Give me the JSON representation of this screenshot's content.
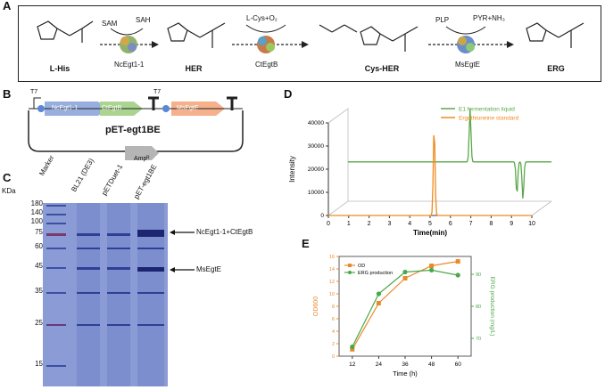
{
  "panels": {
    "a": "A",
    "b": "B",
    "c": "C",
    "d": "D",
    "e": "E"
  },
  "pathway": {
    "molecules": [
      "L-His",
      "HER",
      "Cys-HER",
      "ERG"
    ],
    "enzymes": [
      "NcEgt1-1",
      "CtEgtB",
      "MsEgtE"
    ],
    "cofactors": {
      "sam": "SAM",
      "sah": "SAH",
      "cys": "L-Cys+O₂",
      "plp": "PLP",
      "pyr": "PYR+NH₃"
    }
  },
  "plasmid": {
    "name": "pET-egt1BE",
    "promoter1": "T7",
    "promoter2": "T7",
    "genes": [
      "NcEgt1-1",
      "CtEgtB",
      "MsEgtE"
    ],
    "marker": "Ampᴿ"
  },
  "gel": {
    "kda_label": "KDa",
    "markers": [
      "180",
      "140",
      "100",
      "75",
      "60",
      "45",
      "35",
      "25",
      "15"
    ],
    "lanes": [
      "Marker",
      "BL21 (DE3)",
      "pETDuet-1",
      "pET-egt1BE"
    ],
    "bands": [
      "NcEgt1-1+CtEgtB",
      "MsEgtE"
    ]
  },
  "chart_data": [
    {
      "type": "line",
      "title": "",
      "xlabel": "Time(min)",
      "ylabel": "Intensity",
      "xlim": [
        0,
        10
      ],
      "ylim": [
        0,
        40000
      ],
      "xticks": [
        0,
        1,
        2,
        3,
        4,
        5,
        6,
        7,
        8,
        9,
        10
      ],
      "yticks": [
        0,
        10000,
        20000,
        30000,
        40000
      ],
      "legend_position": "top-right",
      "series": [
        {
          "name": "E1 fermentation liquid",
          "color": "#5aa84a",
          "peaks": [
            {
              "x": 6.0,
              "y": 40000
            },
            {
              "x": 8.3,
              "y": 3000
            },
            {
              "x": 8.6,
              "y": 800
            }
          ],
          "baseline": 17000
        },
        {
          "name": "Ergothioneine standard",
          "color": "#f08a1c",
          "peaks": [
            {
              "x": 5.2,
              "y": 38000
            }
          ],
          "baseline": 0
        }
      ]
    },
    {
      "type": "line",
      "title": "",
      "xlabel": "Time (h)",
      "ylabel": "OD600",
      "ylabel_right": "ERG production (mg/L)",
      "x": [
        12,
        24,
        36,
        48,
        60
      ],
      "legend_position": "top-left",
      "series": [
        {
          "name": "OD",
          "color": "#e98a2a",
          "values": [
            1.1,
            8.5,
            12.5,
            14.5,
            15.2
          ],
          "axis": "left"
        },
        {
          "name": "ERG production",
          "color": "#4aa84a",
          "values": [
            1.5,
            10.0,
            13.5,
            13.8,
            13.0
          ],
          "axis": "right"
        }
      ],
      "ylim": [
        0,
        16
      ],
      "yticks": [
        0,
        2,
        4,
        6,
        8,
        10,
        12,
        14,
        16
      ],
      "yticks_right": [
        "70",
        "80",
        "90"
      ]
    }
  ]
}
